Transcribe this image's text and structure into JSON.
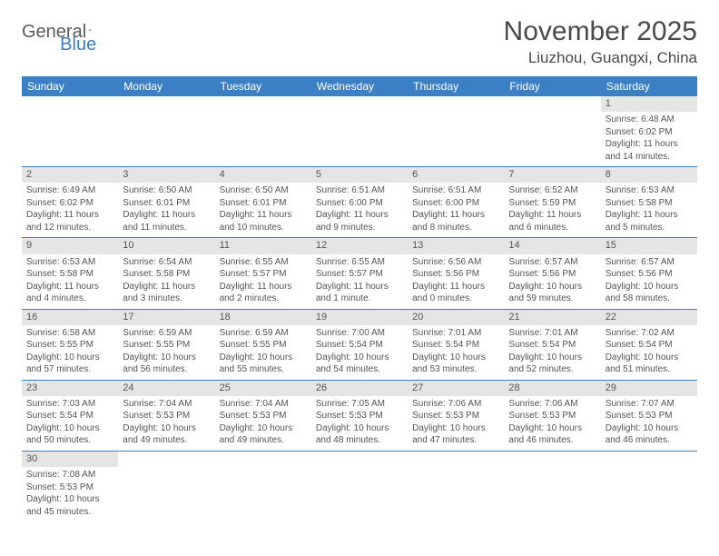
{
  "brand": {
    "part1": "General",
    "part2": "Blue"
  },
  "title": "November 2025",
  "location": "Liuzhou, Guangxi, China",
  "colors": {
    "header_bg": "#3b7fc4",
    "header_text": "#ffffff",
    "daynum_bg": "#e5e5e5",
    "border": "#3b7fc4",
    "text": "#555555",
    "background": "#ffffff"
  },
  "weekdays": [
    "Sunday",
    "Monday",
    "Tuesday",
    "Wednesday",
    "Thursday",
    "Friday",
    "Saturday"
  ],
  "weeks": [
    [
      null,
      null,
      null,
      null,
      null,
      null,
      {
        "n": "1",
        "sr": "Sunrise: 6:48 AM",
        "ss": "Sunset: 6:02 PM",
        "dl1": "Daylight: 11 hours",
        "dl2": "and 14 minutes."
      }
    ],
    [
      {
        "n": "2",
        "sr": "Sunrise: 6:49 AM",
        "ss": "Sunset: 6:02 PM",
        "dl1": "Daylight: 11 hours",
        "dl2": "and 12 minutes."
      },
      {
        "n": "3",
        "sr": "Sunrise: 6:50 AM",
        "ss": "Sunset: 6:01 PM",
        "dl1": "Daylight: 11 hours",
        "dl2": "and 11 minutes."
      },
      {
        "n": "4",
        "sr": "Sunrise: 6:50 AM",
        "ss": "Sunset: 6:01 PM",
        "dl1": "Daylight: 11 hours",
        "dl2": "and 10 minutes."
      },
      {
        "n": "5",
        "sr": "Sunrise: 6:51 AM",
        "ss": "Sunset: 6:00 PM",
        "dl1": "Daylight: 11 hours",
        "dl2": "and 9 minutes."
      },
      {
        "n": "6",
        "sr": "Sunrise: 6:51 AM",
        "ss": "Sunset: 6:00 PM",
        "dl1": "Daylight: 11 hours",
        "dl2": "and 8 minutes."
      },
      {
        "n": "7",
        "sr": "Sunrise: 6:52 AM",
        "ss": "Sunset: 5:59 PM",
        "dl1": "Daylight: 11 hours",
        "dl2": "and 6 minutes."
      },
      {
        "n": "8",
        "sr": "Sunrise: 6:53 AM",
        "ss": "Sunset: 5:58 PM",
        "dl1": "Daylight: 11 hours",
        "dl2": "and 5 minutes."
      }
    ],
    [
      {
        "n": "9",
        "sr": "Sunrise: 6:53 AM",
        "ss": "Sunset: 5:58 PM",
        "dl1": "Daylight: 11 hours",
        "dl2": "and 4 minutes."
      },
      {
        "n": "10",
        "sr": "Sunrise: 6:54 AM",
        "ss": "Sunset: 5:58 PM",
        "dl1": "Daylight: 11 hours",
        "dl2": "and 3 minutes."
      },
      {
        "n": "11",
        "sr": "Sunrise: 6:55 AM",
        "ss": "Sunset: 5:57 PM",
        "dl1": "Daylight: 11 hours",
        "dl2": "and 2 minutes."
      },
      {
        "n": "12",
        "sr": "Sunrise: 6:55 AM",
        "ss": "Sunset: 5:57 PM",
        "dl1": "Daylight: 11 hours",
        "dl2": "and 1 minute."
      },
      {
        "n": "13",
        "sr": "Sunrise: 6:56 AM",
        "ss": "Sunset: 5:56 PM",
        "dl1": "Daylight: 11 hours",
        "dl2": "and 0 minutes."
      },
      {
        "n": "14",
        "sr": "Sunrise: 6:57 AM",
        "ss": "Sunset: 5:56 PM",
        "dl1": "Daylight: 10 hours",
        "dl2": "and 59 minutes."
      },
      {
        "n": "15",
        "sr": "Sunrise: 6:57 AM",
        "ss": "Sunset: 5:56 PM",
        "dl1": "Daylight: 10 hours",
        "dl2": "and 58 minutes."
      }
    ],
    [
      {
        "n": "16",
        "sr": "Sunrise: 6:58 AM",
        "ss": "Sunset: 5:55 PM",
        "dl1": "Daylight: 10 hours",
        "dl2": "and 57 minutes."
      },
      {
        "n": "17",
        "sr": "Sunrise: 6:59 AM",
        "ss": "Sunset: 5:55 PM",
        "dl1": "Daylight: 10 hours",
        "dl2": "and 56 minutes."
      },
      {
        "n": "18",
        "sr": "Sunrise: 6:59 AM",
        "ss": "Sunset: 5:55 PM",
        "dl1": "Daylight: 10 hours",
        "dl2": "and 55 minutes."
      },
      {
        "n": "19",
        "sr": "Sunrise: 7:00 AM",
        "ss": "Sunset: 5:54 PM",
        "dl1": "Daylight: 10 hours",
        "dl2": "and 54 minutes."
      },
      {
        "n": "20",
        "sr": "Sunrise: 7:01 AM",
        "ss": "Sunset: 5:54 PM",
        "dl1": "Daylight: 10 hours",
        "dl2": "and 53 minutes."
      },
      {
        "n": "21",
        "sr": "Sunrise: 7:01 AM",
        "ss": "Sunset: 5:54 PM",
        "dl1": "Daylight: 10 hours",
        "dl2": "and 52 minutes."
      },
      {
        "n": "22",
        "sr": "Sunrise: 7:02 AM",
        "ss": "Sunset: 5:54 PM",
        "dl1": "Daylight: 10 hours",
        "dl2": "and 51 minutes."
      }
    ],
    [
      {
        "n": "23",
        "sr": "Sunrise: 7:03 AM",
        "ss": "Sunset: 5:54 PM",
        "dl1": "Daylight: 10 hours",
        "dl2": "and 50 minutes."
      },
      {
        "n": "24",
        "sr": "Sunrise: 7:04 AM",
        "ss": "Sunset: 5:53 PM",
        "dl1": "Daylight: 10 hours",
        "dl2": "and 49 minutes."
      },
      {
        "n": "25",
        "sr": "Sunrise: 7:04 AM",
        "ss": "Sunset: 5:53 PM",
        "dl1": "Daylight: 10 hours",
        "dl2": "and 49 minutes."
      },
      {
        "n": "26",
        "sr": "Sunrise: 7:05 AM",
        "ss": "Sunset: 5:53 PM",
        "dl1": "Daylight: 10 hours",
        "dl2": "and 48 minutes."
      },
      {
        "n": "27",
        "sr": "Sunrise: 7:06 AM",
        "ss": "Sunset: 5:53 PM",
        "dl1": "Daylight: 10 hours",
        "dl2": "and 47 minutes."
      },
      {
        "n": "28",
        "sr": "Sunrise: 7:06 AM",
        "ss": "Sunset: 5:53 PM",
        "dl1": "Daylight: 10 hours",
        "dl2": "and 46 minutes."
      },
      {
        "n": "29",
        "sr": "Sunrise: 7:07 AM",
        "ss": "Sunset: 5:53 PM",
        "dl1": "Daylight: 10 hours",
        "dl2": "and 46 minutes."
      }
    ],
    [
      {
        "n": "30",
        "sr": "Sunrise: 7:08 AM",
        "ss": "Sunset: 5:53 PM",
        "dl1": "Daylight: 10 hours",
        "dl2": "and 45 minutes."
      },
      null,
      null,
      null,
      null,
      null,
      null
    ]
  ]
}
